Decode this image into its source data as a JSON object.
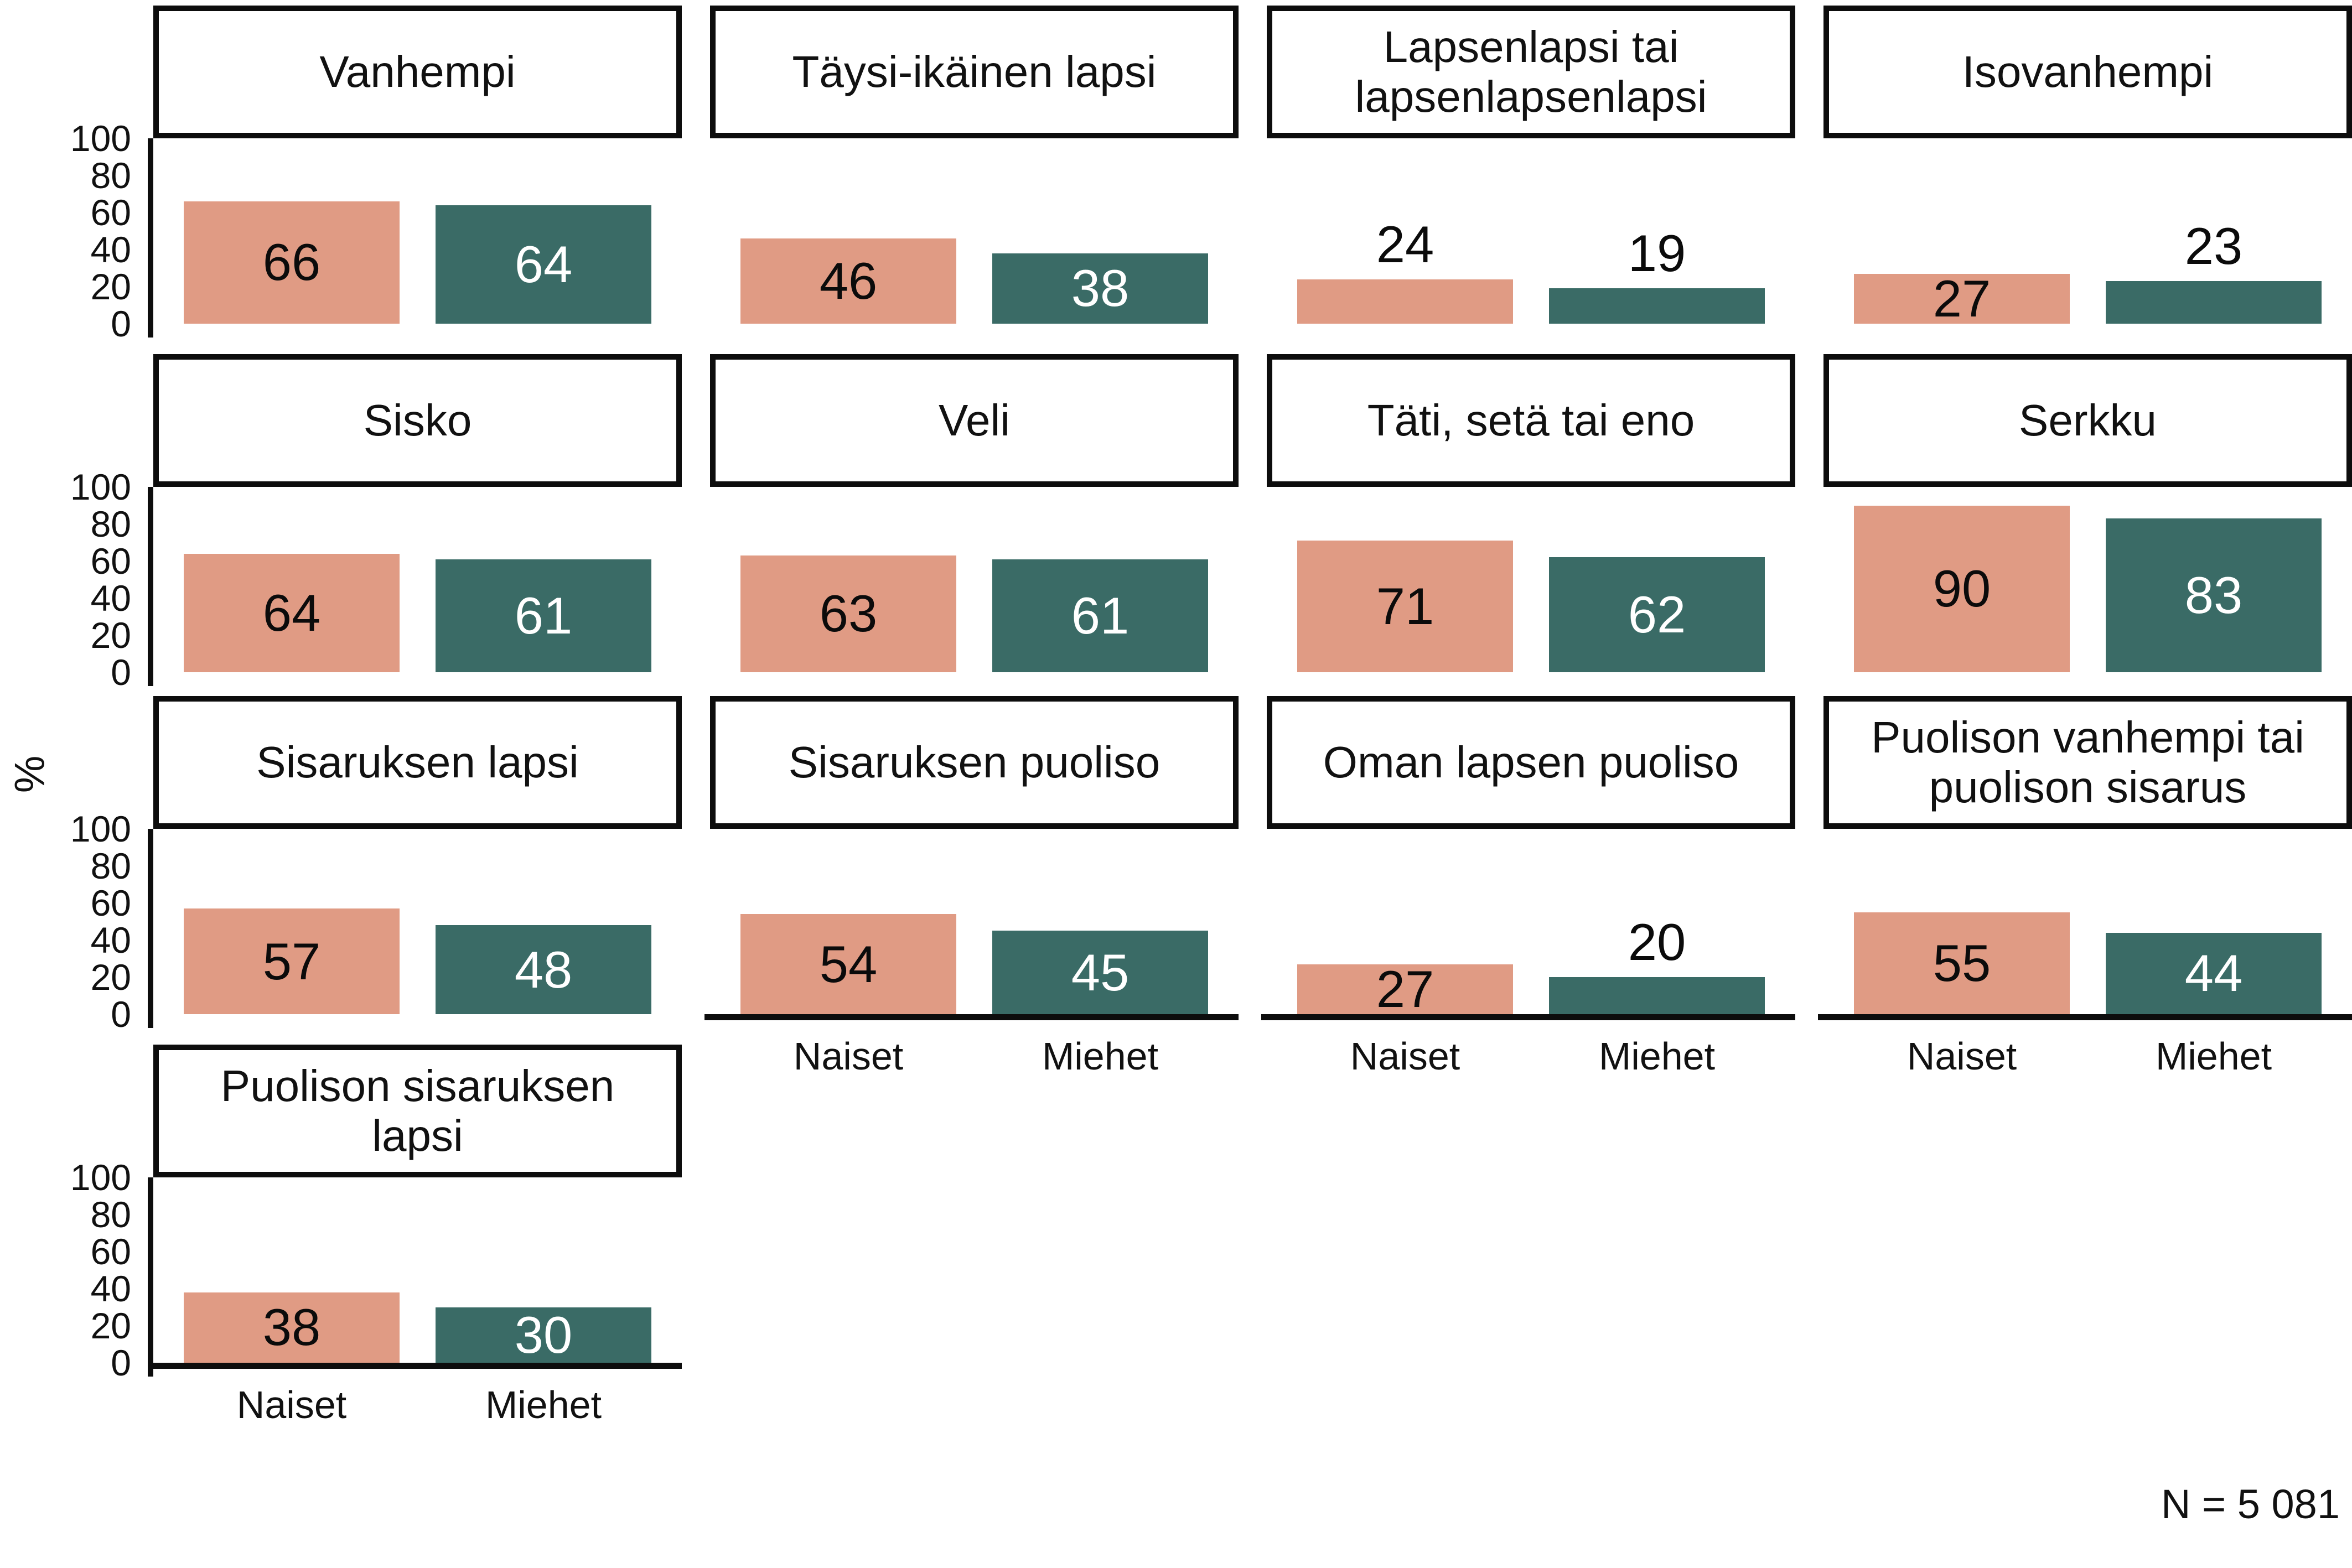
{
  "figure": {
    "y_axis_label": "%",
    "n_label": "N = 5 081",
    "y_ticks": [
      "100",
      "80",
      "60",
      "40",
      "20",
      "0"
    ],
    "x_categories": [
      "Naiset",
      "Miehet"
    ],
    "colors": {
      "naiset_bar": "#E09B84",
      "miehet_bar": "#3A6B66",
      "border": "#0D0D0D",
      "text": "#111111",
      "background": "#FFFFFF"
    }
  },
  "chart_data": {
    "type": "bar",
    "categories": [
      "Naiset",
      "Miehet"
    ],
    "ylabel": "%",
    "ylim": [
      0,
      100
    ],
    "yticks": [
      100,
      80,
      60,
      40,
      20,
      0
    ],
    "grid": "off",
    "legend": "none",
    "note": "N = 5 081",
    "panels": [
      {
        "title": "Vanhempi",
        "values": {
          "naiset": 66,
          "miehet": 64
        }
      },
      {
        "title": "Täysi-ikäinen lapsi",
        "values": {
          "naiset": 46,
          "miehet": 38
        }
      },
      {
        "title": "Lapsenlapsi tai lapsenlapsenlapsi",
        "values": {
          "naiset": 24,
          "miehet": 19
        }
      },
      {
        "title": "Isovanhempi",
        "values": {
          "naiset": 27,
          "miehet": 23
        }
      },
      {
        "title": "Sisko",
        "values": {
          "naiset": 64,
          "miehet": 61
        }
      },
      {
        "title": "Veli",
        "values": {
          "naiset": 63,
          "miehet": 61
        }
      },
      {
        "title": "Täti, setä tai eno",
        "values": {
          "naiset": 71,
          "miehet": 62
        }
      },
      {
        "title": "Serkku",
        "values": {
          "naiset": 90,
          "miehet": 83
        }
      },
      {
        "title": "Sisaruksen lapsi",
        "values": {
          "naiset": 57,
          "miehet": 48
        }
      },
      {
        "title": "Sisaruksen puoliso",
        "values": {
          "naiset": 54,
          "miehet": 45
        }
      },
      {
        "title": "Oman lapsen puoliso",
        "values": {
          "naiset": 27,
          "miehet": 20
        }
      },
      {
        "title": "Puolison vanhempi tai puolison sisarus",
        "values": {
          "naiset": 55,
          "miehet": 44
        }
      },
      {
        "title": "Puolison sisaruksen lapsi",
        "values": {
          "naiset": 38,
          "miehet": 30
        }
      }
    ]
  }
}
